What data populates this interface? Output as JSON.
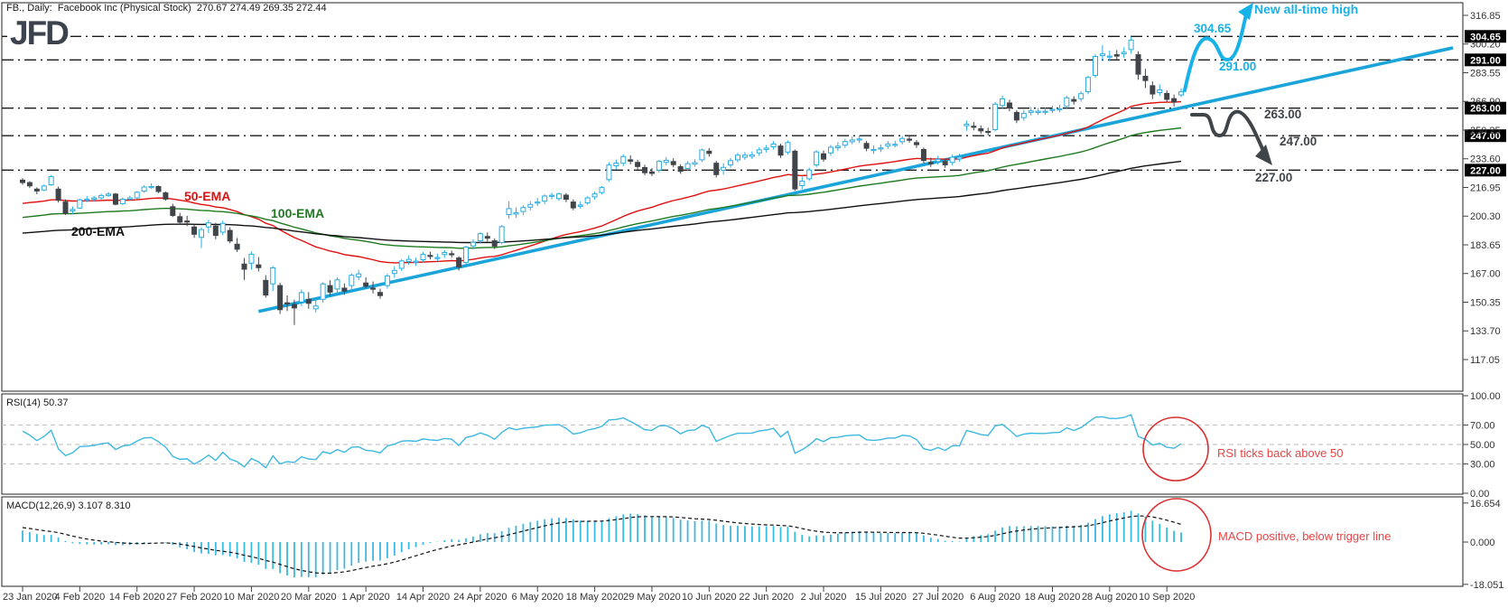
{
  "header": {
    "title": "FB., Daily:  Facebook Inc (Physical Stock)  270.67 274.49 269.35 272.44",
    "logo": "JFD",
    "symbol": "FB",
    "timeframe": "Daily",
    "last_ohlc": {
      "open": 270.67,
      "high": 274.49,
      "low": 269.35,
      "close": 272.44
    }
  },
  "colors": {
    "bull": "#29abe2",
    "bear": "#40454a",
    "ema50": "#e01010",
    "ema100": "#1f7a1f",
    "ema200": "#101010",
    "trendline": "#1ba4da",
    "cyan_annotation": "#17b2e8",
    "dark_annotation": "#40454a",
    "red_annotation": "#d93030",
    "level_line": "#1a1a1a",
    "rsi_line": "#3db8e0",
    "rsi_guide": "#bbbbbb",
    "macd_bar": "#3db8e0",
    "macd_signal": "#101010",
    "axis_text": "#333333",
    "level_box_bg": "#000000",
    "level_box_text": "#ffffff",
    "logo": "#3c434e"
  },
  "ema_labels": [
    {
      "label": "50-EMA"
    },
    {
      "label": "100-EMA"
    },
    {
      "label": "200-EMA"
    }
  ],
  "rsi": {
    "label": "RSI(14) 50.37",
    "period": 14,
    "value": 50.37,
    "guide_levels": [
      70,
      50,
      30
    ],
    "axis_labels": [
      "100.00",
      "70.00",
      "50.00",
      "30.00",
      "0.00"
    ]
  },
  "macd": {
    "label": "MACD(12,26,9) 3.107 8.310",
    "params": [
      12,
      26,
      9
    ],
    "macd_value": 3.107,
    "signal_value": 8.31,
    "axis_labels": [
      "16.654",
      "0.000",
      "-18.051"
    ]
  },
  "annotations": {
    "new_high": {
      "text": "New all-time high"
    },
    "resistance": {
      "text": "304.65"
    },
    "pullback": {
      "text": "291.00"
    },
    "support_1": {
      "text": "263.00"
    },
    "support_2": {
      "text": "247.00"
    },
    "support_3": {
      "text": "227.00"
    },
    "rsi_note": {
      "text": "RSI ticks back above 50"
    },
    "macd_note": {
      "text": "MACD positive, below trigger line"
    }
  },
  "chart_data": {
    "type": "candlestick",
    "title": "FB daily candles with 50/100/200 EMA, cyan uptrend line, RSI(14) and MACD(12,26,9) subpanels",
    "legend": "none",
    "grid": "horizontal dash-dot level lines only",
    "price_ylim": [
      117.05,
      316.85
    ],
    "price_axis_ticks": [
      "316.85",
      "300.20",
      "283.55",
      "266.90",
      "250.25",
      "233.60",
      "216.95",
      "200.30",
      "183.65",
      "167.00",
      "150.35",
      "133.70",
      "117.05"
    ],
    "marked_levels": [
      304.65,
      291.0,
      263.0,
      247.0,
      227.0
    ],
    "x_ticks": [
      {
        "label": "23 Jan 2020",
        "i": 0
      },
      {
        "label": "4 Feb 2020",
        "i": 8
      },
      {
        "label": "14 Feb 2020",
        "i": 16
      },
      {
        "label": "27 Feb 2020",
        "i": 24
      },
      {
        "label": "10 Mar 2020",
        "i": 32
      },
      {
        "label": "20 Mar 2020",
        "i": 40
      },
      {
        "label": "1 Apr 2020",
        "i": 48
      },
      {
        "label": "14 Apr 2020",
        "i": 56
      },
      {
        "label": "24 Apr 2020",
        "i": 64
      },
      {
        "label": "6 May 2020",
        "i": 72
      },
      {
        "label": "18 May 2020",
        "i": 80
      },
      {
        "label": "29 May 2020",
        "i": 88
      },
      {
        "label": "10 Jun 2020",
        "i": 96
      },
      {
        "label": "22 Jun 2020",
        "i": 104
      },
      {
        "label": "2 Jul 2020",
        "i": 112
      },
      {
        "label": "15 Jul 2020",
        "i": 120
      },
      {
        "label": "27 Jul 2020",
        "i": 128
      },
      {
        "label": "6 Aug 2020",
        "i": 136
      },
      {
        "label": "18 Aug 2020",
        "i": 144
      },
      {
        "label": "28 Aug 2020",
        "i": 152
      },
      {
        "label": "10 Sep 2020",
        "i": 160
      }
    ],
    "ema_periods": [
      50,
      100,
      200
    ],
    "ema_seeds": [
      207,
      199,
      190
    ],
    "trendline": {
      "from": {
        "i": 33,
        "price": 145.0
      },
      "to": {
        "i": 200,
        "price": 298.0
      }
    },
    "indicators_note": "RSI and MACD series are computed from the candle closes below",
    "candles": [
      [
        221.2,
        222.3,
        218.5,
        219.8
      ],
      [
        219.8,
        220.6,
        216.6,
        217.9
      ],
      [
        216.0,
        217.0,
        213.0,
        214.9
      ],
      [
        215.5,
        218.6,
        214.8,
        217.8
      ],
      [
        218.5,
        224.2,
        217.9,
        223.2
      ],
      [
        216.0,
        217.5,
        208.2,
        209.5
      ],
      [
        208.5,
        210.0,
        201.0,
        201.9
      ],
      [
        203.4,
        205.9,
        201.3,
        204.2
      ],
      [
        205.0,
        210.4,
        204.5,
        209.8
      ],
      [
        209.8,
        211.9,
        208.4,
        210.1
      ],
      [
        210.1,
        212.0,
        208.7,
        210.9
      ],
      [
        210.9,
        213.3,
        209.9,
        212.3
      ],
      [
        212.3,
        214.2,
        211.5,
        213.1
      ],
      [
        213.1,
        213.8,
        206.6,
        207.2
      ],
      [
        207.5,
        211.2,
        206.9,
        210.1
      ],
      [
        210.1,
        212.2,
        209.5,
        210.9
      ],
      [
        210.9,
        214.8,
        210.1,
        214.2
      ],
      [
        214.8,
        218.3,
        213.9,
        217.2
      ],
      [
        217.2,
        219.3,
        216.1,
        217.5
      ],
      [
        217.5,
        218.1,
        213.7,
        214.6
      ],
      [
        213.8,
        214.6,
        209.3,
        210.2
      ],
      [
        205.8,
        207.5,
        199.8,
        200.7
      ],
      [
        200.0,
        202.2,
        195.3,
        196.8
      ],
      [
        197.5,
        200.5,
        194.5,
        197.2
      ],
      [
        194.0,
        195.5,
        187.7,
        189.8
      ],
      [
        188.0,
        193.6,
        181.8,
        192.5
      ],
      [
        194.0,
        198.1,
        190.5,
        196.4
      ],
      [
        194.5,
        196.5,
        186.9,
        189.1
      ],
      [
        191.0,
        197.6,
        189.2,
        196.1
      ],
      [
        192.0,
        193.9,
        184.6,
        185.9
      ],
      [
        184.0,
        187.6,
        179.5,
        181.1
      ],
      [
        172.5,
        176.0,
        163.3,
        169.5
      ],
      [
        173.0,
        179.7,
        169.3,
        178.2
      ],
      [
        172.0,
        176.5,
        168.2,
        170.4
      ],
      [
        163.0,
        166.0,
        153.0,
        154.5
      ],
      [
        161.0,
        171.3,
        156.8,
        170.3
      ],
      [
        160.0,
        161.5,
        143.5,
        146.0
      ],
      [
        150.0,
        154.3,
        145.2,
        149.7
      ],
      [
        149.0,
        151.8,
        137.1,
        147.0
      ],
      [
        150.5,
        157.7,
        148.1,
        155.9
      ],
      [
        152.0,
        156.2,
        146.5,
        149.7
      ],
      [
        146.5,
        152.4,
        144.4,
        148.1
      ],
      [
        152.0,
        162.0,
        150.1,
        161.0
      ],
      [
        160.0,
        163.1,
        153.9,
        156.2
      ],
      [
        158.0,
        164.8,
        155.7,
        163.3
      ],
      [
        158.5,
        161.2,
        154.6,
        156.8
      ],
      [
        160.0,
        167.0,
        157.9,
        166.0
      ],
      [
        165.0,
        169.1,
        163.2,
        166.8
      ],
      [
        161.5,
        164.8,
        158.5,
        159.6
      ],
      [
        158.5,
        162.4,
        155.4,
        158.2
      ],
      [
        156.0,
        158.2,
        152.4,
        154.2
      ],
      [
        160.0,
        166.9,
        158.3,
        165.6
      ],
      [
        167.0,
        171.2,
        164.5,
        168.8
      ],
      [
        170.0,
        175.3,
        168.5,
        174.3
      ],
      [
        174.0,
        177.5,
        172.0,
        175.2
      ],
      [
        173.5,
        176.3,
        171.4,
        174.2
      ],
      [
        175.0,
        179.5,
        173.6,
        178.1
      ],
      [
        177.5,
        179.7,
        175.2,
        177.0
      ],
      [
        176.0,
        178.5,
        174.1,
        176.3
      ],
      [
        178.0,
        180.6,
        176.1,
        179.2
      ],
      [
        178.5,
        180.3,
        176.2,
        178.3
      ],
      [
        176.0,
        177.0,
        168.7,
        170.8
      ],
      [
        173.5,
        183.2,
        172.3,
        182.3
      ],
      [
        183.0,
        186.8,
        181.2,
        185.1
      ],
      [
        186.0,
        191.0,
        184.4,
        190.1
      ],
      [
        188.5,
        190.8,
        185.6,
        187.5
      ],
      [
        186.0,
        187.4,
        181.3,
        182.9
      ],
      [
        185.0,
        195.2,
        183.9,
        194.2
      ],
      [
        201.2,
        209.0,
        198.8,
        204.7
      ],
      [
        201.5,
        205.4,
        199.3,
        202.3
      ],
      [
        203.0,
        206.6,
        200.9,
        205.3
      ],
      [
        205.5,
        209.0,
        203.7,
        207.1
      ],
      [
        208.0,
        210.9,
        206.1,
        208.5
      ],
      [
        209.0,
        212.9,
        207.3,
        212.0
      ],
      [
        212.0,
        213.9,
        210.1,
        212.4
      ],
      [
        210.5,
        214.1,
        209.2,
        213.2
      ],
      [
        212.5,
        213.7,
        208.4,
        210.1
      ],
      [
        208.5,
        210.0,
        203.7,
        205.1
      ],
      [
        206.0,
        208.9,
        204.6,
        206.8
      ],
      [
        208.0,
        211.9,
        206.9,
        210.9
      ],
      [
        211.5,
        214.5,
        209.9,
        213.2
      ],
      [
        214.0,
        217.7,
        212.9,
        216.9
      ],
      [
        221.5,
        231.6,
        220.3,
        230.0
      ],
      [
        229.5,
        233.2,
        227.3,
        231.1
      ],
      [
        231.0,
        236.2,
        229.4,
        234.9
      ],
      [
        233.0,
        235.6,
        230.4,
        232.2
      ],
      [
        231.5,
        233.0,
        227.4,
        229.1
      ],
      [
        228.5,
        230.1,
        224.0,
        225.5
      ],
      [
        226.0,
        228.2,
        223.6,
        225.1
      ],
      [
        227.0,
        233.0,
        225.5,
        232.1
      ],
      [
        231.5,
        234.6,
        229.8,
        232.7
      ],
      [
        232.0,
        233.9,
        228.6,
        230.2
      ],
      [
        229.0,
        230.4,
        224.9,
        226.3
      ],
      [
        228.0,
        232.2,
        226.5,
        230.8
      ],
      [
        230.5,
        233.3,
        229.0,
        231.4
      ],
      [
        233.0,
        239.6,
        231.7,
        238.7
      ],
      [
        238.0,
        239.9,
        234.8,
        236.7
      ],
      [
        231.0,
        232.4,
        222.7,
        224.4
      ],
      [
        227.0,
        231.0,
        224.5,
        228.6
      ],
      [
        230.0,
        234.0,
        228.4,
        232.5
      ],
      [
        233.0,
        237.1,
        231.6,
        235.7
      ],
      [
        234.5,
        237.5,
        233.0,
        235.7
      ],
      [
        235.0,
        237.9,
        233.5,
        235.9
      ],
      [
        237.0,
        240.3,
        235.3,
        238.8
      ],
      [
        239.0,
        241.6,
        237.2,
        239.8
      ],
      [
        240.5,
        243.9,
        238.9,
        242.2
      ],
      [
        241.0,
        242.3,
        234.1,
        235.7
      ],
      [
        237.5,
        244.2,
        236.0,
        243.0
      ],
      [
        238.0,
        239.0,
        215.0,
        216.1
      ],
      [
        218.0,
        223.2,
        215.9,
        220.6
      ],
      [
        222.0,
        228.4,
        220.7,
        227.1
      ],
      [
        230.0,
        238.6,
        228.7,
        237.6
      ],
      [
        236.5,
        238.4,
        231.8,
        233.4
      ],
      [
        237.0,
        241.6,
        235.3,
        240.3
      ],
      [
        240.0,
        243.2,
        238.1,
        240.9
      ],
      [
        241.5,
        245.2,
        239.9,
        243.6
      ],
      [
        243.5,
        246.5,
        242.0,
        244.5
      ],
      [
        244.5,
        247.1,
        242.8,
        245.1
      ],
      [
        242.5,
        243.9,
        238.0,
        239.7
      ],
      [
        238.5,
        241.3,
        236.4,
        239.0
      ],
      [
        239.5,
        242.0,
        237.5,
        239.9
      ],
      [
        241.0,
        243.9,
        239.3,
        242.1
      ],
      [
        242.0,
        244.1,
        240.2,
        242.0
      ],
      [
        243.5,
        246.9,
        241.9,
        245.4
      ],
      [
        245.0,
        247.0,
        243.0,
        244.9
      ],
      [
        243.0,
        244.5,
        239.9,
        241.8
      ],
      [
        239.0,
        240.1,
        231.0,
        232.6
      ],
      [
        231.5,
        234.2,
        228.9,
        230.7
      ],
      [
        232.0,
        235.4,
        230.2,
        233.3
      ],
      [
        232.0,
        233.8,
        228.3,
        230.1
      ],
      [
        231.5,
        235.9,
        229.8,
        234.5
      ],
      [
        233.5,
        236.5,
        232.0,
        234.5
      ],
      [
        252.8,
        255.8,
        249.8,
        253.7
      ],
      [
        252.5,
        254.9,
        250.1,
        252.0
      ],
      [
        251.0,
        252.9,
        248.0,
        249.8
      ],
      [
        249.5,
        251.6,
        247.2,
        249.0
      ],
      [
        250.5,
        266.5,
        249.5,
        265.3
      ],
      [
        264.5,
        270.2,
        262.7,
        268.4
      ],
      [
        266.0,
        267.9,
        261.2,
        263.0
      ],
      [
        260.5,
        261.8,
        254.3,
        256.1
      ],
      [
        257.5,
        262.0,
        255.6,
        259.9
      ],
      [
        260.5,
        263.6,
        258.7,
        261.4
      ],
      [
        260.5,
        263.1,
        259.0,
        261.2
      ],
      [
        261.0,
        263.3,
        259.2,
        261.2
      ],
      [
        262.0,
        264.4,
        260.1,
        262.3
      ],
      [
        262.5,
        264.9,
        260.6,
        262.6
      ],
      [
        264.0,
        270.2,
        262.4,
        269.0
      ],
      [
        268.0,
        269.9,
        265.0,
        267.0
      ],
      [
        268.5,
        272.9,
        266.7,
        271.4
      ],
      [
        272.5,
        281.9,
        271.1,
        280.8
      ],
      [
        282.0,
        294.4,
        280.6,
        293.0
      ],
      [
        293.5,
        299.6,
        290.3,
        294.5
      ],
      [
        293.0,
        296.4,
        290.2,
        293.2
      ],
      [
        294.0,
        296.7,
        291.1,
        293.2
      ],
      [
        294.5,
        298.3,
        292.1,
        295.4
      ],
      [
        297.0,
        304.65,
        294.7,
        302.5
      ],
      [
        294.0,
        296.0,
        279.5,
        282.7
      ],
      [
        281.5,
        285.8,
        274.7,
        279.0
      ],
      [
        276.0,
        278.5,
        268.3,
        271.2
      ],
      [
        272.0,
        276.8,
        270.1,
        273.6
      ],
      [
        271.5,
        273.3,
        266.3,
        268.1
      ],
      [
        268.5,
        270.9,
        264.0,
        266.6
      ],
      [
        270.67,
        274.49,
        269.35,
        272.44
      ]
    ]
  }
}
